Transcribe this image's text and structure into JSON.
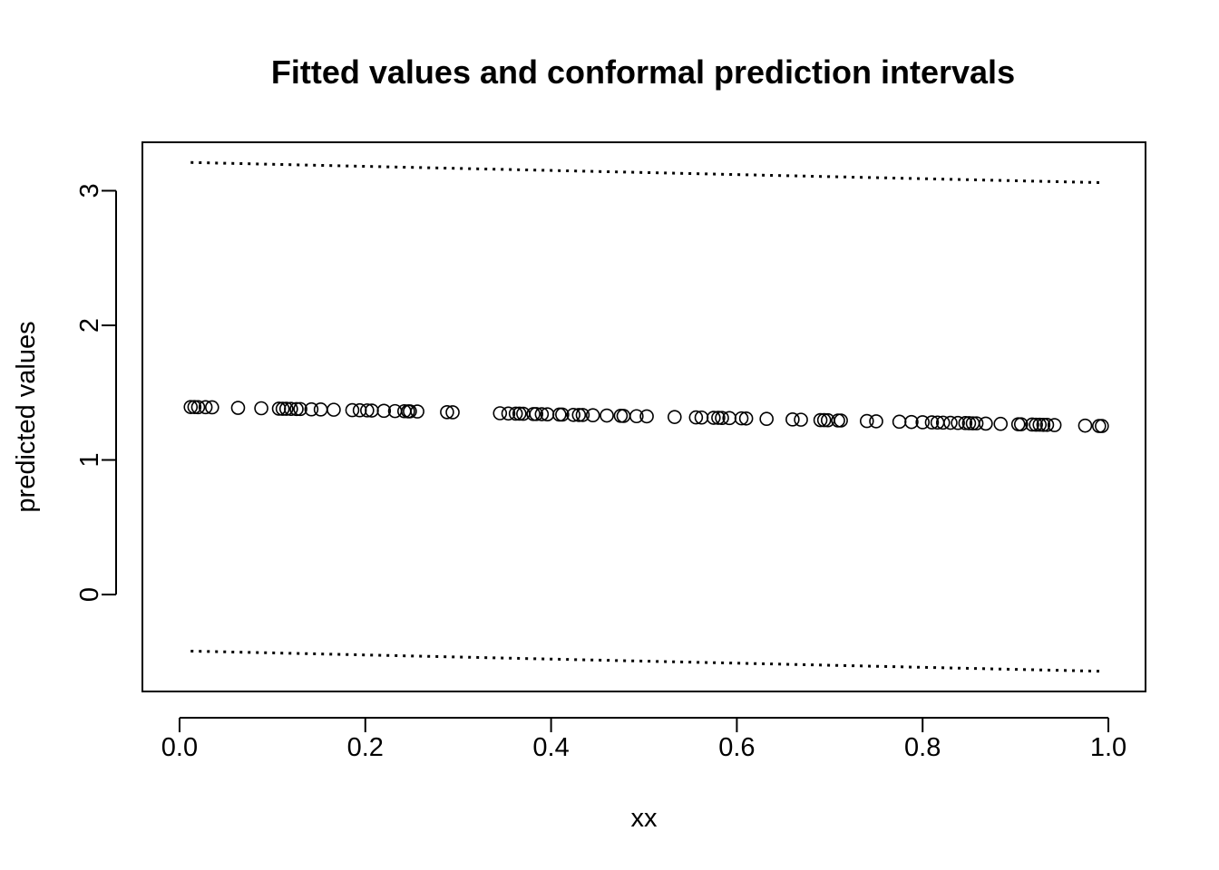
{
  "chart_data": {
    "type": "scatter",
    "title": "Fitted values and conformal prediction intervals",
    "xlabel": "xx",
    "ylabel": "predicted values",
    "xlim": [
      -0.04,
      1.04
    ],
    "ylim": [
      -0.72,
      3.36
    ],
    "xticks": [
      0.0,
      0.2,
      0.4,
      0.6,
      0.8,
      1.0
    ],
    "xtick_labels": [
      "0.0",
      "0.2",
      "0.4",
      "0.6",
      "0.8",
      "1.0"
    ],
    "yticks": [
      0,
      1,
      2,
      3
    ],
    "ytick_labels": [
      "0",
      "1",
      "2",
      "3"
    ],
    "grid": false,
    "series": [
      {
        "style": "points",
        "x": [
          0.012,
          0.016,
          0.02,
          0.028,
          0.035,
          0.063,
          0.088,
          0.107,
          0.111,
          0.115,
          0.12,
          0.126,
          0.13,
          0.142,
          0.152,
          0.166,
          0.186,
          0.194,
          0.202,
          0.207,
          0.22,
          0.232,
          0.242,
          0.246,
          0.248,
          0.256,
          0.288,
          0.294,
          0.345,
          0.354,
          0.362,
          0.366,
          0.37,
          0.381,
          0.384,
          0.39,
          0.396,
          0.409,
          0.412,
          0.424,
          0.43,
          0.434,
          0.445,
          0.46,
          0.475,
          0.478,
          0.492,
          0.503,
          0.533,
          0.556,
          0.562,
          0.575,
          0.58,
          0.584,
          0.592,
          0.605,
          0.61,
          0.632,
          0.66,
          0.669,
          0.69,
          0.694,
          0.698,
          0.709,
          0.712,
          0.74,
          0.75,
          0.775,
          0.788,
          0.8,
          0.81,
          0.816,
          0.822,
          0.83,
          0.838,
          0.846,
          0.85,
          0.854,
          0.858,
          0.868,
          0.884,
          0.903,
          0.906,
          0.918,
          0.922,
          0.926,
          0.93,
          0.934,
          0.942,
          0.975,
          0.99,
          0.993
        ],
        "y": [
          1.393,
          1.393,
          1.392,
          1.392,
          1.391,
          1.387,
          1.384,
          1.381,
          1.38,
          1.38,
          1.379,
          1.378,
          1.378,
          1.376,
          1.375,
          1.373,
          1.37,
          1.369,
          1.368,
          1.367,
          1.365,
          1.363,
          1.362,
          1.361,
          1.361,
          1.36,
          1.355,
          1.354,
          1.347,
          1.345,
          1.344,
          1.344,
          1.343,
          1.341,
          1.341,
          1.34,
          1.339,
          1.337,
          1.337,
          1.335,
          1.334,
          1.334,
          1.332,
          1.33,
          1.328,
          1.327,
          1.325,
          1.324,
          1.319,
          1.316,
          1.315,
          1.313,
          1.313,
          1.312,
          1.311,
          1.309,
          1.308,
          1.305,
          1.301,
          1.299,
          1.296,
          1.296,
          1.295,
          1.293,
          1.293,
          1.289,
          1.287,
          1.284,
          1.282,
          1.28,
          1.279,
          1.278,
          1.277,
          1.276,
          1.275,
          1.274,
          1.273,
          1.272,
          1.272,
          1.27,
          1.268,
          1.265,
          1.265,
          1.263,
          1.262,
          1.262,
          1.261,
          1.261,
          1.259,
          1.255,
          1.252,
          1.252
        ],
        "marker": "open-circle",
        "color": "#000000"
      },
      {
        "style": "dotted-line",
        "x": [
          0.012,
          0.993
        ],
        "y": [
          3.21,
          3.06
        ],
        "color": "#000000"
      },
      {
        "style": "dotted-line",
        "x": [
          0.012,
          0.993
        ],
        "y": [
          -0.42,
          -0.57
        ],
        "color": "#000000"
      }
    ]
  }
}
